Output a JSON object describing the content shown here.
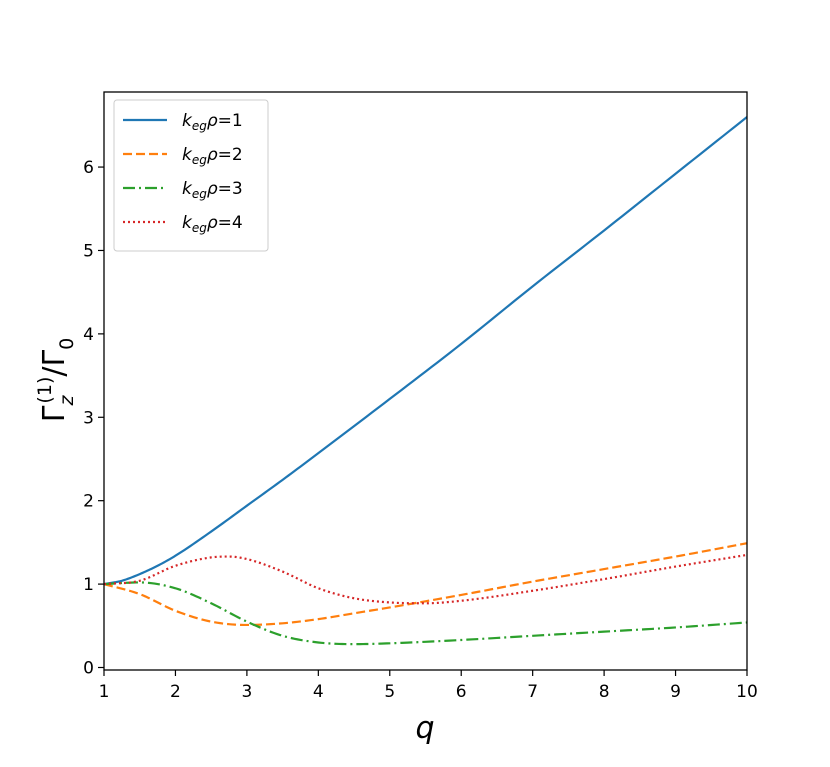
{
  "chart_data": {
    "type": "line",
    "xlabel": "q",
    "ylabel": "Γz(1)/Γ0",
    "xlim": [
      1,
      10
    ],
    "ylim": [
      -0.03,
      6.9
    ],
    "xticks": [
      1,
      2,
      3,
      4,
      5,
      6,
      7,
      8,
      9,
      10
    ],
    "yticks": [
      0,
      1,
      2,
      3,
      4,
      5,
      6
    ],
    "grid": false,
    "legend_position": "top-left",
    "series": [
      {
        "name": "k_eg ρ=1",
        "legend": {
          "k": "k",
          "sub": "eg",
          "rest": "ρ=1"
        },
        "color": "#1f77b4",
        "style": "solid",
        "x": [
          1,
          1.25,
          1.5,
          1.75,
          2,
          2.5,
          3,
          3.5,
          4,
          5,
          6,
          7,
          8,
          9,
          10
        ],
        "y": [
          1.0,
          1.04,
          1.12,
          1.22,
          1.34,
          1.63,
          1.94,
          2.25,
          2.57,
          3.22,
          3.88,
          4.57,
          5.24,
          5.92,
          6.6
        ]
      },
      {
        "name": "k_eg ρ=2",
        "legend": {
          "k": "k",
          "sub": "eg",
          "rest": "ρ=2"
        },
        "color": "#ff7f0e",
        "style": "dashed",
        "x": [
          1,
          1.5,
          2,
          2.5,
          3,
          3.5,
          4,
          4.5,
          5,
          6,
          7,
          8,
          9,
          10
        ],
        "y": [
          1.0,
          0.88,
          0.68,
          0.55,
          0.51,
          0.53,
          0.58,
          0.65,
          0.72,
          0.87,
          1.03,
          1.18,
          1.33,
          1.49
        ]
      },
      {
        "name": "k_eg ρ=3",
        "legend": {
          "k": "k",
          "sub": "eg",
          "rest": "ρ=3"
        },
        "color": "#2ca02c",
        "style": "dashdot",
        "x": [
          1,
          1.5,
          2,
          2.5,
          3,
          3.5,
          4,
          4.5,
          5,
          6,
          7,
          8,
          9,
          10
        ],
        "y": [
          1.0,
          1.02,
          0.95,
          0.77,
          0.55,
          0.38,
          0.3,
          0.28,
          0.29,
          0.33,
          0.38,
          0.43,
          0.48,
          0.54
        ]
      },
      {
        "name": "k_eg ρ=4",
        "legend": {
          "k": "k",
          "sub": "eg",
          "rest": "ρ=4"
        },
        "color": "#d62728",
        "style": "dotted",
        "x": [
          1,
          1.5,
          2,
          2.5,
          2.75,
          3,
          3.5,
          4,
          4.5,
          5,
          5.5,
          6,
          7,
          8,
          9,
          10
        ],
        "y": [
          1.0,
          1.04,
          1.22,
          1.32,
          1.33,
          1.3,
          1.15,
          0.95,
          0.83,
          0.78,
          0.77,
          0.8,
          0.92,
          1.06,
          1.21,
          1.35
        ]
      }
    ]
  }
}
